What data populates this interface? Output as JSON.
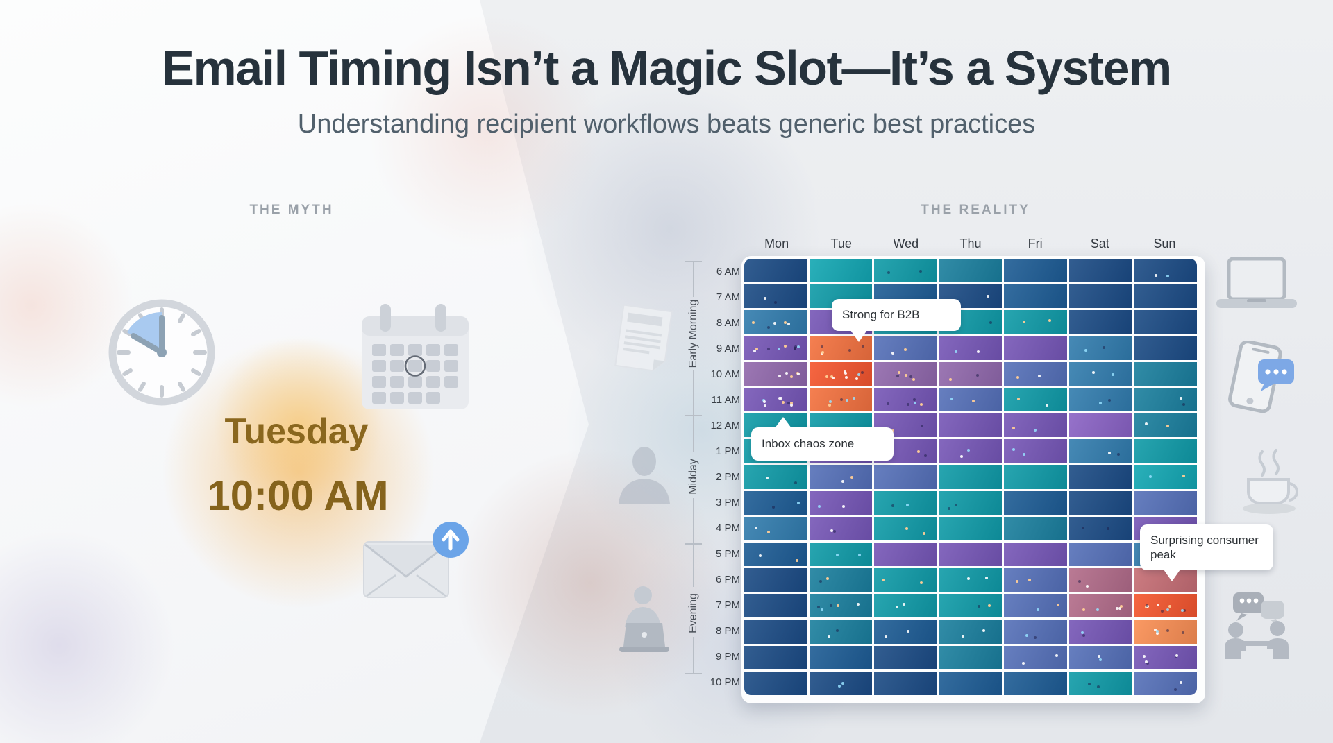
{
  "header": {
    "title": "Email Timing Isn’t a Magic Slot—It’s a System",
    "subtitle": "Understanding recipient workflows beats generic best practices"
  },
  "sections": {
    "myth_label": "THE MYTH",
    "reality_label": "THE REALITY"
  },
  "myth": {
    "day": "Tuesday",
    "time": "10:00 AM",
    "icons": [
      "clock-icon",
      "calendar-icon",
      "envelope-icon",
      "send-arrow-icon"
    ],
    "accent_glow_color": "#f3a83e",
    "text_color": "#8a671e"
  },
  "side_icons": {
    "left_of_chart": [
      "document-icon",
      "person-icon",
      "person-laptop-icon"
    ],
    "right_of_chart": [
      "laptop-icon",
      "phone-chat-icon",
      "coffee-icon",
      "people-chat-icon"
    ]
  },
  "chart_data": {
    "type": "heatmap",
    "title": "Email engagement by day and hour",
    "x_labels": [
      "Mon",
      "Tue",
      "Wed",
      "Thu",
      "Fri",
      "Sat",
      "Sun"
    ],
    "y_labels": [
      "6 AM",
      "7 AM",
      "8 AM",
      "9 AM",
      "10 AM",
      "11 AM",
      "12 AM",
      "1 PM",
      "2 PM",
      "3 PM",
      "4 PM",
      "5 PM",
      "6 PM",
      "7 PM",
      "8 PM",
      "9 PM",
      "10 PM"
    ],
    "y_groups": [
      {
        "label": "Early Morning",
        "rows": [
          0,
          5
        ]
      },
      {
        "label": "Midday",
        "rows": [
          6,
          10
        ]
      },
      {
        "label": "Evening",
        "rows": [
          11,
          15
        ]
      }
    ],
    "legend": "none",
    "grid": "white 3px gridlines, rounded outer corners",
    "palette": {
      "navy": "#1b4b84",
      "blue": "#1d5c94",
      "steel": "#317cad",
      "dkteal": "#1a7f9d",
      "teal": "#0f9ba7",
      "brteal": "#12a7b2",
      "slate": "#5570b8",
      "purple": "#7656b6",
      "lpurple": "#8a62c4",
      "mauve": "#9168ab",
      "rose": "#b26b88",
      "salmon": "#c66d73",
      "orange": "#f4713d",
      "dorange": "#f5552c",
      "lorange": "#fa8e52"
    },
    "values": [
      [
        "navy",
        "brteal",
        "teal",
        "dkteal",
        "blue",
        "navy",
        "navy"
      ],
      [
        "navy",
        "teal",
        "blue",
        "navy",
        "blue",
        "navy",
        "navy"
      ],
      [
        "steel",
        "purple",
        "teal",
        "teal",
        "teal",
        "navy",
        "navy"
      ],
      [
        "purple",
        "orange",
        "slate",
        "purple",
        "purple",
        "steel",
        "navy"
      ],
      [
        "mauve",
        "dorange",
        "mauve",
        "mauve",
        "slate",
        "steel",
        "dkteal"
      ],
      [
        "purple",
        "orange",
        "purple",
        "slate",
        "teal",
        "steel",
        "dkteal"
      ],
      [
        "teal",
        "teal",
        "purple",
        "purple",
        "purple",
        "lpurple",
        "dkteal"
      ],
      [
        "teal",
        "purple",
        "purple",
        "purple",
        "purple",
        "steel",
        "teal"
      ],
      [
        "teal",
        "slate",
        "slate",
        "teal",
        "teal",
        "navy",
        "brteal"
      ],
      [
        "blue",
        "purple",
        "teal",
        "teal",
        "blue",
        "navy",
        "slate"
      ],
      [
        "steel",
        "purple",
        "teal",
        "teal",
        "dkteal",
        "navy",
        "purple"
      ],
      [
        "blue",
        "teal",
        "purple",
        "purple",
        "purple",
        "slate",
        "steel"
      ],
      [
        "navy",
        "dkteal",
        "teal",
        "teal",
        "slate",
        "rose",
        "salmon"
      ],
      [
        "navy",
        "dkteal",
        "teal",
        "teal",
        "slate",
        "rose",
        "dorange"
      ],
      [
        "navy",
        "dkteal",
        "blue",
        "dkteal",
        "slate",
        "purple",
        "lorange"
      ],
      [
        "navy",
        "blue",
        "navy",
        "dkteal",
        "slate",
        "slate",
        "purple"
      ],
      [
        "navy",
        "navy",
        "navy",
        "blue",
        "blue",
        "teal",
        "slate"
      ]
    ],
    "speck_density": [
      [
        0,
        0,
        1,
        0,
        0,
        0,
        1
      ],
      [
        1,
        0,
        0,
        1,
        0,
        0,
        0
      ],
      [
        2,
        0,
        0,
        1,
        1,
        0,
        0
      ],
      [
        3,
        2,
        1,
        1,
        0,
        1,
        0
      ],
      [
        2,
        3,
        2,
        1,
        1,
        1,
        0
      ],
      [
        3,
        2,
        2,
        1,
        1,
        1,
        1
      ],
      [
        0,
        0,
        1,
        0,
        1,
        0,
        1
      ],
      [
        0,
        1,
        1,
        1,
        1,
        1,
        0
      ],
      [
        1,
        1,
        0,
        0,
        0,
        0,
        1
      ],
      [
        1,
        1,
        1,
        1,
        0,
        0,
        0
      ],
      [
        1,
        1,
        1,
        0,
        0,
        1,
        0
      ],
      [
        1,
        1,
        0,
        0,
        0,
        0,
        0
      ],
      [
        0,
        1,
        1,
        1,
        1,
        1,
        0
      ],
      [
        0,
        2,
        1,
        1,
        1,
        2,
        3
      ],
      [
        0,
        1,
        1,
        1,
        1,
        1,
        2
      ],
      [
        0,
        0,
        0,
        0,
        1,
        1,
        2
      ],
      [
        0,
        1,
        0,
        0,
        0,
        1,
        1
      ]
    ],
    "annotations": [
      {
        "text": "Strong for B2B",
        "points_to": "Tue 9 AM"
      },
      {
        "text": "Inbox chaos zone",
        "points_to": "Mon 11 AM"
      },
      {
        "text": "Surprising consumer peak",
        "points_to": "Sun 6 PM"
      }
    ]
  }
}
